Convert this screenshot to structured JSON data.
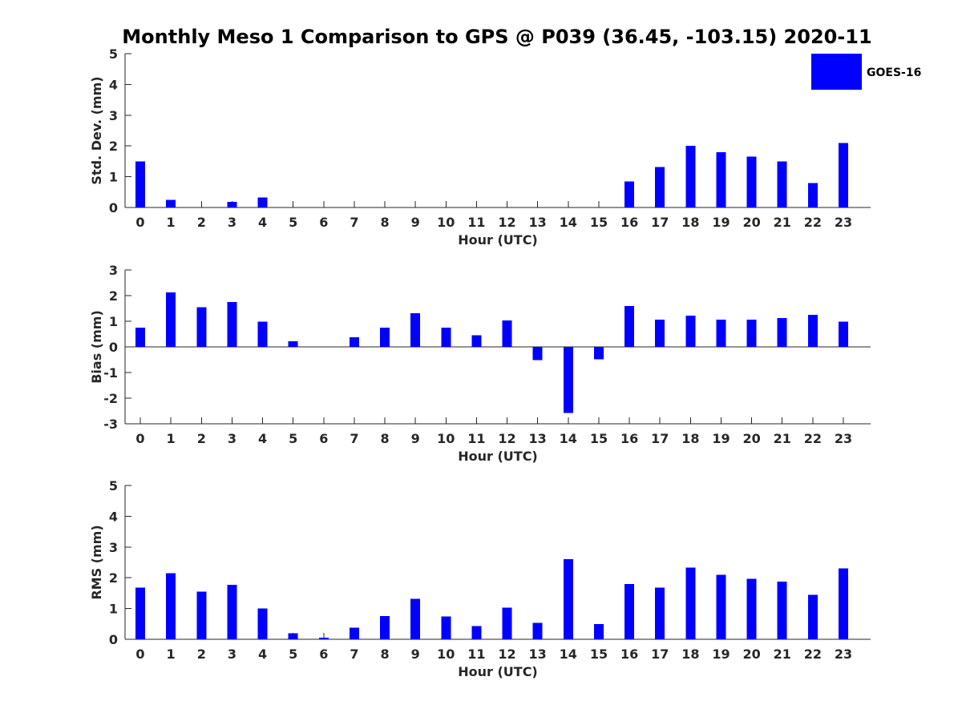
{
  "title": "Monthly Meso 1 Comparison to GPS @ P039 (36.45, -103.15) 2020-11",
  "legend": {
    "label": "GOES-16",
    "color": "#0000ff",
    "placement": "top-right"
  },
  "chart_data": [
    {
      "type": "bar",
      "id": "std",
      "series": [
        {
          "name": "GOES-16",
          "values": [
            1.5,
            0.25,
            0.0,
            0.18,
            0.32,
            0.0,
            0.0,
            0.0,
            0.0,
            0.0,
            0.0,
            0.0,
            0.0,
            0.0,
            0.0,
            0.0,
            0.85,
            1.32,
            2.0,
            1.8,
            1.65,
            1.5,
            0.8,
            2.1
          ]
        }
      ],
      "categories": [
        "0",
        "1",
        "2",
        "3",
        "4",
        "5",
        "6",
        "7",
        "8",
        "9",
        "10",
        "11",
        "12",
        "13",
        "14",
        "15",
        "16",
        "17",
        "18",
        "19",
        "20",
        "21",
        "22",
        "23"
      ],
      "xlabel": "Hour (UTC)",
      "ylabel": "Std. Dev. (mm)",
      "ylim": [
        0,
        5
      ],
      "yticks": [
        "0",
        "1",
        "2",
        "3",
        "4",
        "5"
      ],
      "color": "#0000ff"
    },
    {
      "type": "bar",
      "id": "bias",
      "series": [
        {
          "name": "GOES-16",
          "values": [
            0.75,
            2.12,
            1.55,
            1.75,
            0.98,
            0.22,
            0.0,
            0.38,
            0.75,
            1.32,
            0.75,
            0.45,
            1.03,
            -0.52,
            -2.58,
            -0.48,
            1.6,
            1.07,
            1.22,
            1.07,
            1.07,
            1.12,
            1.25,
            0.98
          ]
        }
      ],
      "categories": [
        "0",
        "1",
        "2",
        "3",
        "4",
        "5",
        "6",
        "7",
        "8",
        "9",
        "10",
        "11",
        "12",
        "13",
        "14",
        "15",
        "16",
        "17",
        "18",
        "19",
        "20",
        "21",
        "22",
        "23"
      ],
      "xlabel": "Hour (UTC)",
      "ylabel": "Bias (mm)",
      "ylim": [
        -3,
        3
      ],
      "yticks": [
        "-3",
        "-2",
        "-1",
        "0",
        "1",
        "2",
        "3"
      ],
      "color": "#0000ff"
    },
    {
      "type": "bar",
      "id": "rms",
      "series": [
        {
          "name": "GOES-16",
          "values": [
            1.68,
            2.15,
            1.55,
            1.77,
            1.0,
            0.2,
            0.05,
            0.38,
            0.75,
            1.32,
            0.74,
            0.43,
            1.03,
            0.54,
            2.6,
            0.5,
            1.8,
            1.68,
            2.33,
            2.1,
            1.97,
            1.87,
            1.45,
            2.3
          ]
        }
      ],
      "categories": [
        "0",
        "1",
        "2",
        "3",
        "4",
        "5",
        "6",
        "7",
        "8",
        "9",
        "10",
        "11",
        "12",
        "13",
        "14",
        "15",
        "16",
        "17",
        "18",
        "19",
        "20",
        "21",
        "22",
        "23"
      ],
      "xlabel": "Hour (UTC)",
      "ylabel": "RMS (mm)",
      "ylim": [
        0,
        5
      ],
      "yticks": [
        "0",
        "1",
        "2",
        "3",
        "4",
        "5"
      ],
      "color": "#0000ff"
    }
  ]
}
